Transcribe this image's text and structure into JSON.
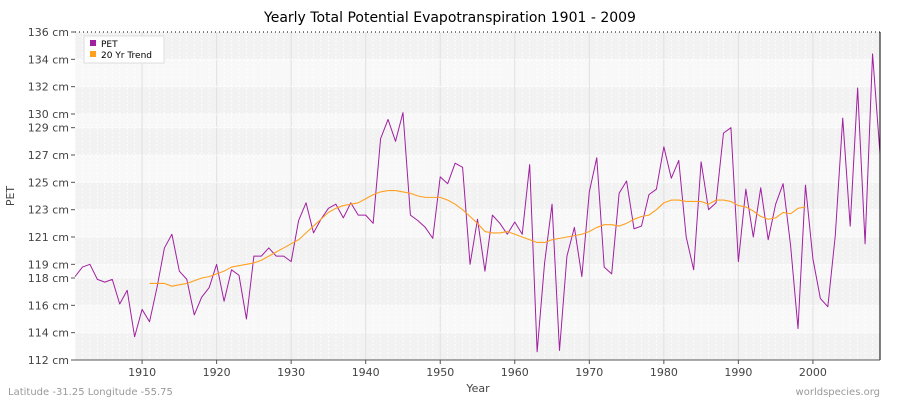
{
  "chart_data": {
    "type": "line",
    "title": "Yearly Total Potential Evapotranspiration 1901 - 2009",
    "xlabel": "Year",
    "ylabel": "PET",
    "xlim": [
      1901,
      2009
    ],
    "ylim": [
      112,
      136
    ],
    "x_ticks": [
      1910,
      1920,
      1930,
      1940,
      1950,
      1960,
      1970,
      1980,
      1990,
      2000
    ],
    "y_ticks": [
      {
        "value": 112,
        "label": "112 cm"
      },
      {
        "value": 114,
        "label": "114 cm"
      },
      {
        "value": 116,
        "label": "116 cm"
      },
      {
        "value": 118,
        "label": "118 cm"
      },
      {
        "value": 119,
        "label": "119 cm"
      },
      {
        "value": 121,
        "label": "121 cm"
      },
      {
        "value": 123,
        "label": "123 cm"
      },
      {
        "value": 125,
        "label": "125 cm"
      },
      {
        "value": 127,
        "label": "127 cm"
      },
      {
        "value": 129,
        "label": "129 cm"
      },
      {
        "value": 130,
        "label": "130 cm"
      },
      {
        "value": 132,
        "label": "132 cm"
      },
      {
        "value": 134,
        "label": "134 cm"
      },
      {
        "value": 136,
        "label": "136 cm"
      }
    ],
    "grid": true,
    "legend_position": "top-left",
    "series": [
      {
        "name": "PET",
        "color": "#a020a0",
        "x": [
          1901,
          1902,
          1903,
          1904,
          1905,
          1906,
          1907,
          1908,
          1909,
          1910,
          1911,
          1912,
          1913,
          1914,
          1915,
          1916,
          1917,
          1918,
          1919,
          1920,
          1921,
          1922,
          1923,
          1924,
          1925,
          1926,
          1927,
          1928,
          1929,
          1930,
          1931,
          1932,
          1933,
          1934,
          1935,
          1936,
          1937,
          1938,
          1939,
          1940,
          1941,
          1942,
          1943,
          1944,
          1945,
          1946,
          1947,
          1948,
          1949,
          1950,
          1951,
          1952,
          1953,
          1954,
          1955,
          1956,
          1957,
          1958,
          1959,
          1960,
          1961,
          1962,
          1963,
          1964,
          1965,
          1966,
          1967,
          1968,
          1969,
          1970,
          1971,
          1972,
          1973,
          1974,
          1975,
          1976,
          1977,
          1978,
          1979,
          1980,
          1981,
          1982,
          1983,
          1984,
          1985,
          1986,
          1987,
          1988,
          1989,
          1990,
          1991,
          1992,
          1993,
          1994,
          1995,
          1996,
          1997,
          1998,
          1999,
          2000,
          2001,
          2002,
          2003,
          2004,
          2005,
          2006,
          2007,
          2008,
          2009
        ],
        "values": [
          118.1,
          118.8,
          119.0,
          117.9,
          117.7,
          117.9,
          116.1,
          117.1,
          113.7,
          115.7,
          114.8,
          117.3,
          120.2,
          121.2,
          118.5,
          117.9,
          115.3,
          116.6,
          117.3,
          119.0,
          116.3,
          118.6,
          118.2,
          115.0,
          119.6,
          119.6,
          120.2,
          119.6,
          119.6,
          119.2,
          122.2,
          123.5,
          121.3,
          122.3,
          123.1,
          123.4,
          122.4,
          123.5,
          122.6,
          122.6,
          122.0,
          128.2,
          129.6,
          128.0,
          130.1,
          122.6,
          122.2,
          121.7,
          120.9,
          125.4,
          124.9,
          126.4,
          126.1,
          119.0,
          122.3,
          118.5,
          122.6,
          122.0,
          121.2,
          122.1,
          121.2,
          126.3,
          112.6,
          119.1,
          123.4,
          112.7,
          119.6,
          121.7,
          118.1,
          124.3,
          126.8,
          118.8,
          118.3,
          124.2,
          125.1,
          121.6,
          121.8,
          124.1,
          124.5,
          127.6,
          125.3,
          126.6,
          121.0,
          118.6,
          126.5,
          123.0,
          123.5,
          128.6,
          129.0,
          119.2,
          124.5,
          121.0,
          124.6,
          120.8,
          123.4,
          124.9,
          120.4,
          114.3,
          124.8,
          119.4,
          116.5,
          115.9,
          121.1,
          129.7,
          121.8,
          131.9,
          120.5,
          134.4,
          127.1
        ]
      },
      {
        "name": "20 Yr Trend",
        "color": "#ffa020",
        "x": [
          1911,
          1912,
          1913,
          1914,
          1915,
          1916,
          1917,
          1918,
          1919,
          1920,
          1921,
          1922,
          1923,
          1924,
          1925,
          1926,
          1927,
          1928,
          1929,
          1930,
          1931,
          1932,
          1933,
          1934,
          1935,
          1936,
          1937,
          1938,
          1939,
          1940,
          1941,
          1942,
          1943,
          1944,
          1945,
          1946,
          1947,
          1948,
          1949,
          1950,
          1951,
          1952,
          1953,
          1954,
          1955,
          1956,
          1957,
          1958,
          1959,
          1960,
          1961,
          1962,
          1963,
          1964,
          1965,
          1966,
          1967,
          1968,
          1969,
          1970,
          1971,
          1972,
          1973,
          1974,
          1975,
          1976,
          1977,
          1978,
          1979,
          1980,
          1981,
          1982,
          1983,
          1984,
          1985,
          1986,
          1987,
          1988,
          1989,
          1990,
          1991,
          1992,
          1993,
          1994,
          1995,
          1996,
          1997,
          1998,
          1999
        ],
        "values": [
          117.6,
          117.6,
          117.6,
          117.4,
          117.5,
          117.6,
          117.8,
          118.0,
          118.1,
          118.3,
          118.5,
          118.8,
          118.9,
          119.0,
          119.1,
          119.3,
          119.6,
          119.9,
          120.2,
          120.5,
          120.8,
          121.3,
          121.8,
          122.3,
          122.8,
          123.1,
          123.3,
          123.4,
          123.5,
          123.8,
          124.1,
          124.3,
          124.4,
          124.4,
          124.3,
          124.2,
          124.0,
          123.9,
          123.9,
          123.9,
          123.7,
          123.4,
          123.0,
          122.5,
          122.0,
          121.4,
          121.3,
          121.3,
          121.4,
          121.2,
          121.0,
          120.8,
          120.6,
          120.6,
          120.8,
          120.9,
          121.0,
          121.1,
          121.2,
          121.4,
          121.7,
          121.9,
          121.9,
          121.8,
          122.0,
          122.3,
          122.5,
          122.6,
          123.0,
          123.5,
          123.7,
          123.7,
          123.6,
          123.6,
          123.6,
          123.4,
          123.7,
          123.7,
          123.6,
          123.3,
          123.2,
          122.9,
          122.5,
          122.3,
          122.4,
          122.8,
          122.7,
          123.1,
          123.2
        ]
      }
    ]
  },
  "footer": {
    "left": "Latitude -31.25 Longitude -55.75",
    "right": "worldspecies.org"
  }
}
